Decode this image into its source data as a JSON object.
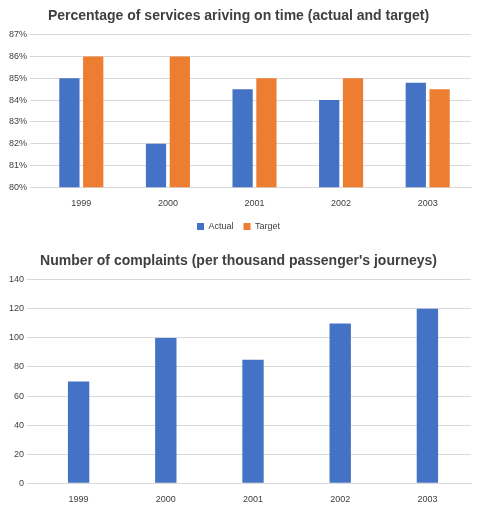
{
  "chart_data": [
    {
      "type": "bar",
      "title": "Percentage of services ariving on time (actual and target)",
      "categories": [
        "1999",
        "2000",
        "2001",
        "2002",
        "2003"
      ],
      "series": [
        {
          "name": "Actual",
          "color": "#4472c4",
          "values": [
            85,
            82,
            84.5,
            84,
            84.8
          ]
        },
        {
          "name": "Target",
          "color": "#ed7d31",
          "values": [
            86,
            86,
            85,
            85,
            84.5
          ]
        }
      ],
      "ylim": [
        80,
        87
      ],
      "yticks": [
        {
          "value": 80,
          "label": "80%"
        },
        {
          "value": 81,
          "label": "81%"
        },
        {
          "value": 82,
          "label": "82%"
        },
        {
          "value": 83,
          "label": "83%"
        },
        {
          "value": 84,
          "label": "84%"
        },
        {
          "value": 85,
          "label": "85%"
        },
        {
          "value": 86,
          "label": "86%"
        },
        {
          "value": 87,
          "label": "87%"
        }
      ],
      "grid": true,
      "legend": "bottom"
    },
    {
      "type": "bar",
      "title": "Number of complaints (per thousand passenger's journeys)",
      "categories": [
        "1999",
        "2000",
        "2001",
        "2002",
        "2003"
      ],
      "values": [
        70,
        100,
        85,
        110,
        120
      ],
      "color": "#4472c4",
      "ylim": [
        0,
        140
      ],
      "yticks": [
        0,
        20,
        40,
        60,
        80,
        100,
        120,
        140
      ],
      "grid": true
    }
  ]
}
